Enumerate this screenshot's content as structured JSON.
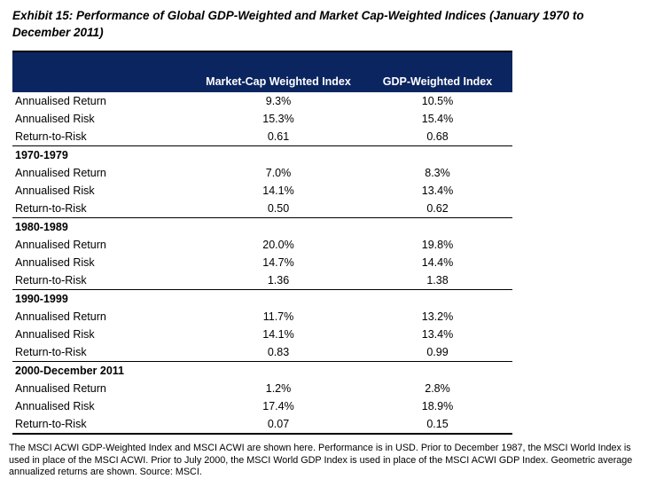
{
  "title": "Exhibit 15: Performance of Global GDP-Weighted and Market Cap-Weighted Indices (January 1970 to December 2011)",
  "table": {
    "columns": [
      "",
      "Market-Cap Weighted Index",
      "GDP-Weighted Index"
    ],
    "sections": [
      {
        "heading": "",
        "rows": [
          [
            "Annualised Return",
            "9.3%",
            "10.5%"
          ],
          [
            "Annualised Risk",
            "15.3%",
            "15.4%"
          ],
          [
            "Return-to-Risk",
            "0.61",
            "0.68"
          ]
        ]
      },
      {
        "heading": "1970-1979",
        "rows": [
          [
            "Annualised Return",
            "7.0%",
            "8.3%"
          ],
          [
            "Annualised Risk",
            "14.1%",
            "13.4%"
          ],
          [
            "Return-to-Risk",
            "0.50",
            "0.62"
          ]
        ]
      },
      {
        "heading": "1980-1989",
        "rows": [
          [
            "Annualised Return",
            "20.0%",
            "19.8%"
          ],
          [
            "Annualised Risk",
            "14.7%",
            "14.4%"
          ],
          [
            "Return-to-Risk",
            "1.36",
            "1.38"
          ]
        ]
      },
      {
        "heading": "1990-1999",
        "rows": [
          [
            "Annualised Return",
            "11.7%",
            "13.2%"
          ],
          [
            "Annualised Risk",
            "14.1%",
            "13.4%"
          ],
          [
            "Return-to-Risk",
            "0.83",
            "0.99"
          ]
        ]
      },
      {
        "heading": "2000-December 2011",
        "rows": [
          [
            "Annualised Return",
            "1.2%",
            "2.8%"
          ],
          [
            "Annualised Risk",
            "17.4%",
            "18.9%"
          ],
          [
            "Return-to-Risk",
            "0.07",
            "0.15"
          ]
        ]
      }
    ]
  },
  "footnote": "The MSCI ACWI GDP-Weighted Index and MSCI ACWI are shown here. Performance is in USD.  Prior to December 1987, the MSCI World Index is used in place of the MSCI ACWI. Prior to July 2000, the MSCI World GDP Index is used in place of the MSCI ACWI GDP Index. Geometric average annualized returns are shown. Source: MSCI.",
  "colors": {
    "header_bg": "#0b2560",
    "header_text": "#ffffff",
    "rule": "#000000"
  }
}
